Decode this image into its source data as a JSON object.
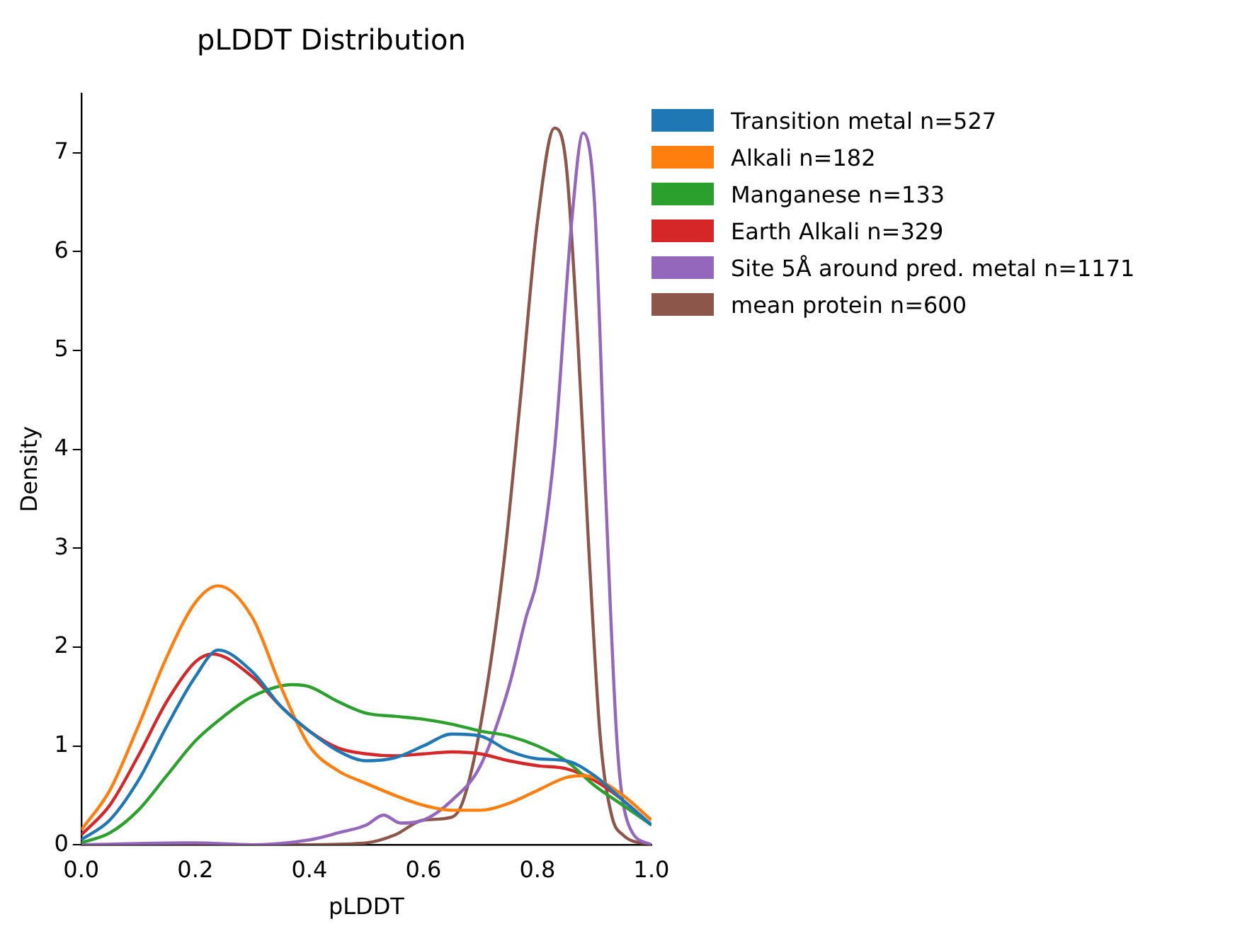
{
  "chart_data": {
    "type": "line",
    "title": "pLDDT Distribution",
    "xlabel": "pLDDT",
    "ylabel": "Density",
    "legend": "right",
    "grid": false,
    "marker": "none",
    "line_style": "solid",
    "xlim": [
      0,
      1
    ],
    "xticks": [
      {
        "value": 0,
        "label": "0.0"
      },
      {
        "value": 0.2,
        "label": "0.2"
      },
      {
        "value": 0.4,
        "label": "0.4"
      },
      {
        "value": 0.6,
        "label": "0.6"
      },
      {
        "value": 0.8,
        "label": "0.8"
      },
      {
        "value": 1,
        "label": "1.0"
      }
    ],
    "ylim": [
      0,
      7.6
    ],
    "yticks": [
      0,
      1,
      2,
      3,
      4,
      5,
      6,
      7
    ],
    "series": [
      {
        "name": "Transition metal n=527",
        "color": "#1f77b4",
        "x": [
          0,
          0.05,
          0.1,
          0.15,
          0.2,
          0.24,
          0.3,
          0.35,
          0.4,
          0.45,
          0.5,
          0.55,
          0.6,
          0.65,
          0.7,
          0.75,
          0.8,
          0.85,
          0.9,
          0.95,
          1
        ],
        "values": [
          0.05,
          0.25,
          0.65,
          1.2,
          1.7,
          1.97,
          1.75,
          1.4,
          1.15,
          0.95,
          0.85,
          0.88,
          1,
          1.12,
          1.1,
          0.95,
          0.87,
          0.85,
          0.7,
          0.45,
          0.2
        ]
      },
      {
        "name": "Alkali n=182",
        "color": "#ff7f0e",
        "x": [
          0,
          0.05,
          0.1,
          0.15,
          0.2,
          0.24,
          0.3,
          0.35,
          0.4,
          0.45,
          0.5,
          0.55,
          0.6,
          0.65,
          0.7,
          0.75,
          0.8,
          0.85,
          0.88,
          0.9,
          0.95,
          1
        ],
        "values": [
          0.15,
          0.55,
          1.2,
          1.9,
          2.45,
          2.62,
          2.3,
          1.6,
          1,
          0.75,
          0.62,
          0.5,
          0.4,
          0.35,
          0.35,
          0.42,
          0.55,
          0.68,
          0.7,
          0.68,
          0.5,
          0.25
        ]
      },
      {
        "name": "Manganese n=133",
        "color": "#2ca02c",
        "x": [
          0,
          0.05,
          0.1,
          0.15,
          0.2,
          0.25,
          0.3,
          0.37,
          0.4,
          0.45,
          0.5,
          0.55,
          0.6,
          0.65,
          0.7,
          0.75,
          0.8,
          0.85,
          0.9,
          0.95,
          1
        ],
        "values": [
          0.02,
          0.12,
          0.35,
          0.7,
          1.05,
          1.3,
          1.5,
          1.62,
          1.6,
          1.45,
          1.33,
          1.3,
          1.27,
          1.22,
          1.15,
          1.1,
          1,
          0.85,
          0.6,
          0.4,
          0.2
        ]
      },
      {
        "name": "Earth Alkali n=329",
        "color": "#d62728",
        "x": [
          0,
          0.05,
          0.1,
          0.15,
          0.2,
          0.23,
          0.3,
          0.35,
          0.4,
          0.45,
          0.5,
          0.55,
          0.6,
          0.65,
          0.7,
          0.75,
          0.8,
          0.85,
          0.9,
          0.95,
          1
        ],
        "values": [
          0.1,
          0.4,
          0.9,
          1.45,
          1.85,
          1.93,
          1.7,
          1.4,
          1.15,
          0.98,
          0.92,
          0.9,
          0.92,
          0.94,
          0.92,
          0.85,
          0.8,
          0.77,
          0.65,
          0.45,
          0.2
        ]
      },
      {
        "name": "Site 5Å around pred. metal n=1171",
        "color": "#9467bd",
        "x": [
          0,
          0.2,
          0.3,
          0.4,
          0.45,
          0.5,
          0.53,
          0.56,
          0.6,
          0.65,
          0.7,
          0.75,
          0.78,
          0.8,
          0.83,
          0.86,
          0.88,
          0.9,
          0.92,
          0.94,
          0.96,
          1
        ],
        "values": [
          0,
          0.02,
          0,
          0.05,
          0.12,
          0.2,
          0.3,
          0.22,
          0.25,
          0.45,
          0.8,
          1.6,
          2.3,
          2.7,
          4,
          6.3,
          7.2,
          6.5,
          3.5,
          1,
          0.2,
          0
        ]
      },
      {
        "name": "mean protein n=600",
        "color": "#8c564b",
        "x": [
          0,
          0.4,
          0.5,
          0.55,
          0.6,
          0.65,
          0.67,
          0.7,
          0.74,
          0.77,
          0.8,
          0.83,
          0.85,
          0.87,
          0.89,
          0.91,
          0.93,
          0.95,
          1
        ],
        "values": [
          0,
          0,
          0.02,
          0.1,
          0.25,
          0.28,
          0.45,
          1.2,
          2.8,
          4.5,
          6.3,
          7.25,
          6.9,
          5.2,
          3,
          1.1,
          0.3,
          0.1,
          0
        ]
      }
    ]
  }
}
